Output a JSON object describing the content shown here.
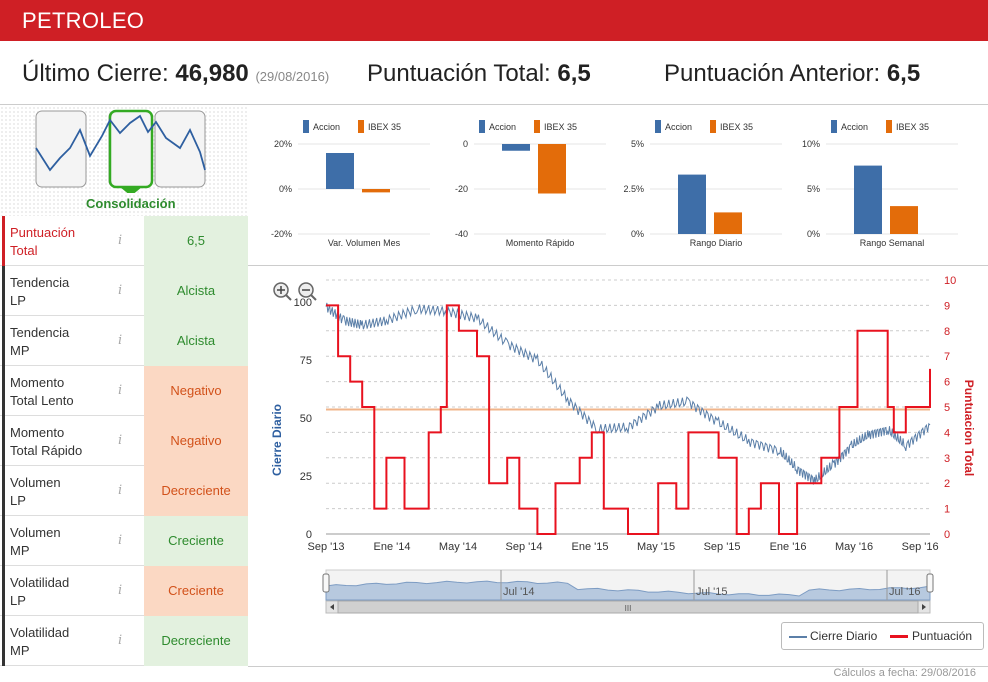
{
  "header": {
    "title": "PETROLEO"
  },
  "summary": {
    "ultimo_label": "Último Cierre:",
    "ultimo_value": "46,980",
    "ultimo_date": "(29/08/2016)",
    "total_label": "Puntuación Total:",
    "total_value": "6,5",
    "anterior_label": "Puntuación Anterior:",
    "anterior_value": "6,5"
  },
  "trend_widget": {
    "label": "Consolidación"
  },
  "scores": [
    {
      "label1": "Puntuación",
      "label2": "Total",
      "value": "6,5",
      "status": "g",
      "highlight": true
    },
    {
      "label1": "Tendencia",
      "label2": "LP",
      "value": "Alcista",
      "status": "g"
    },
    {
      "label1": "Tendencia",
      "label2": "MP",
      "value": "Alcista",
      "status": "g"
    },
    {
      "label1": "Momento",
      "label2": "Total Lento",
      "value": "Negativo",
      "status": "o"
    },
    {
      "label1": "Momento",
      "label2": "Total Rápido",
      "value": "Negativo",
      "status": "o"
    },
    {
      "label1": "Volumen",
      "label2": "LP",
      "value": "Decreciente",
      "status": "o"
    },
    {
      "label1": "Volumen",
      "label2": "MP",
      "value": "Creciente",
      "status": "g"
    },
    {
      "label1": "Volatilidad",
      "label2": "LP",
      "value": "Creciente",
      "status": "o"
    },
    {
      "label1": "Volatilidad",
      "label2": "MP",
      "value": "Decreciente",
      "status": "g"
    }
  ],
  "info_glyph": "i",
  "colors": {
    "red": "#cf1f25",
    "accion": "#3e6ea8",
    "ibex": "#e36c0a",
    "price": "#5b7fa8",
    "punt": "#e8121f"
  },
  "chart_data": [
    {
      "type": "bar",
      "legend": [
        "Accion",
        "IBEX 35"
      ],
      "xlabel": "Var. Volumen Mes",
      "yticks": [
        "20%",
        "0%",
        "-20%"
      ],
      "ylim": [
        -20,
        20
      ],
      "values": [
        16,
        -1.5
      ]
    },
    {
      "type": "bar",
      "legend": [
        "Accion",
        "IBEX 35"
      ],
      "xlabel": "Momento Rápido",
      "yticks": [
        "0",
        "-20",
        "-40"
      ],
      "ylim": [
        -40,
        0
      ],
      "values": [
        -3,
        -22
      ]
    },
    {
      "type": "bar",
      "legend": [
        "Accion",
        "IBEX 35"
      ],
      "xlabel": "Rango Diario",
      "yticks": [
        "5%",
        "2.5%",
        "0%"
      ],
      "ylim": [
        0,
        5
      ],
      "values": [
        3.3,
        1.2
      ]
    },
    {
      "type": "bar",
      "legend": [
        "Accion",
        "IBEX 35"
      ],
      "xlabel": "Rango Semanal",
      "yticks": [
        "10%",
        "5%",
        "0%"
      ],
      "ylim": [
        0,
        10
      ],
      "values": [
        7.6,
        3.1
      ]
    },
    {
      "type": "line",
      "ylabel_left": "Cierre Diario",
      "ylabel_right": "Puntuacion Total",
      "xticks": [
        "Sep '13",
        "Ene '14",
        "May '14",
        "Sep '14",
        "Ene '15",
        "May '15",
        "Sep '15",
        "Ene '16",
        "May '16",
        "Sep '16"
      ],
      "yticks_left": [
        "100",
        "75",
        "50",
        "25",
        "0"
      ],
      "yticks_right": [
        "10",
        "9",
        "8",
        "7",
        "6",
        "5",
        "4",
        "3",
        "2",
        "1",
        "0"
      ],
      "ylim_left": [
        0,
        100
      ],
      "ylim_right": [
        0,
        10
      ],
      "reference_line": 50,
      "series": [
        {
          "name": "Cierre Diario",
          "t": [
            0,
            0.03,
            0.06,
            0.1,
            0.15,
            0.2,
            0.25,
            0.3,
            0.35,
            0.4,
            0.45,
            0.5,
            0.55,
            0.6,
            0.65,
            0.7,
            0.75,
            0.78,
            0.81,
            0.84,
            0.87,
            0.9,
            0.93,
            0.96,
            1.0
          ],
          "values": [
            98,
            92,
            90,
            92,
            97,
            96,
            93,
            82,
            75,
            58,
            45,
            46,
            55,
            57,
            48,
            40,
            36,
            28,
            23,
            30,
            38,
            43,
            45,
            38,
            47
          ]
        },
        {
          "name": "Puntuación",
          "t": [
            0,
            0.02,
            0.04,
            0.06,
            0.08,
            0.1,
            0.13,
            0.17,
            0.19,
            0.2,
            0.22,
            0.25,
            0.27,
            0.3,
            0.32,
            0.35,
            0.38,
            0.42,
            0.44,
            0.46,
            0.5,
            0.52,
            0.55,
            0.58,
            0.6,
            0.62,
            0.65,
            0.68,
            0.7,
            0.72,
            0.75,
            0.78,
            0.82,
            0.85,
            0.88,
            0.9,
            0.93,
            0.94,
            0.96,
            0.98,
            1.0
          ],
          "values": [
            9,
            7,
            6,
            5,
            1,
            3,
            1,
            4,
            5,
            9,
            8,
            7,
            2,
            3,
            1,
            0,
            2,
            3,
            4,
            1,
            0,
            0,
            2,
            1,
            4,
            4,
            3,
            0,
            1,
            2,
            0,
            2,
            3,
            5,
            8,
            8,
            5,
            4,
            5,
            5,
            6.5
          ]
        }
      ]
    },
    {
      "type": "area",
      "xticks": [
        "Jul '14",
        "Jul '15",
        "Jul '16"
      ],
      "scrollbar_grip": "III"
    }
  ],
  "legend": {
    "price": "Cierre Diario",
    "punt": "Puntuación"
  },
  "footer": {
    "text": "Cálculos a fecha: 29/08/2016"
  }
}
